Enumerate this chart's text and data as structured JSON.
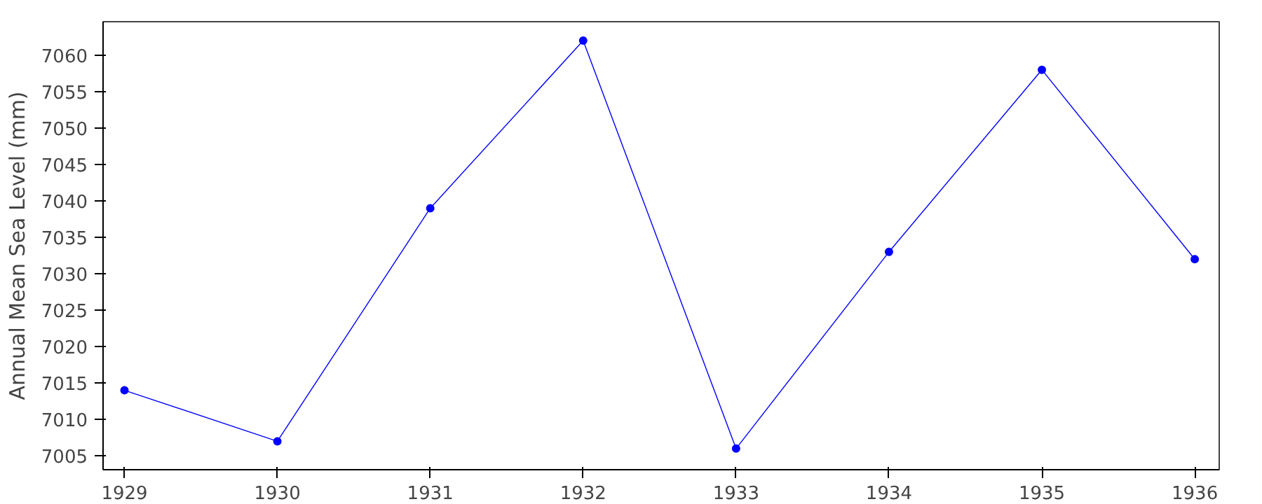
{
  "chart_data": {
    "type": "line",
    "ylabel": "Annual Mean Sea Level (mm)",
    "x": [
      1929,
      1930,
      1931,
      1932,
      1933,
      1934,
      1935,
      1936
    ],
    "series": [
      {
        "color": "#0000ff",
        "values": [
          7014,
          7007,
          7039,
          7062,
          7006,
          7033,
          7058,
          7032
        ]
      }
    ],
    "xlim": [
      1928.86,
      1936.16
    ],
    "xticks": [
      1929,
      1930,
      1931,
      1932,
      1933,
      1934,
      1935,
      1936
    ],
    "ylim": [
      7003.1,
      7064.6
    ],
    "yticks": [
      7005,
      7010,
      7015,
      7020,
      7025,
      7030,
      7035,
      7040,
      7045,
      7050,
      7055,
      7060
    ],
    "grid": false,
    "marker": "circle",
    "line_style": "solid"
  }
}
